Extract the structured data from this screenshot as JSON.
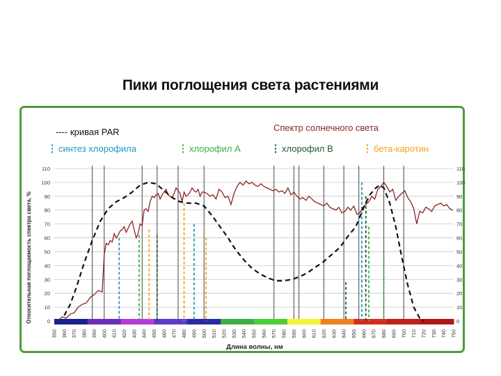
{
  "page": {
    "title": "Пики поглощения света растениями"
  },
  "legend": {
    "par_label": "---- кривая PAR",
    "sun_label": "Спектр солнечного света",
    "chl_synth_label": "синтез хлорофила",
    "chl_a_label": "хлорофил А",
    "chl_b_label": "хлорофил В",
    "beta_label": "бета-каротин"
  },
  "colors": {
    "sun": "#8b2323",
    "par": "#111111",
    "chl_synth": "#1a9bbf",
    "chl_a": "#3cb043",
    "chl_b": "#1e5c2e",
    "beta": "#f2a31a",
    "frame": "#4f9a3e"
  },
  "chart_data": {
    "type": "line",
    "xlabel": "Длина волны, нм",
    "ylabel": "Относительная поглощаемость спектра света, %",
    "xlim": [
      350,
      750
    ],
    "ylim": [
      0,
      110
    ],
    "x_ticks": [
      350,
      360,
      370,
      380,
      390,
      400,
      410,
      420,
      430,
      440,
      450,
      460,
      470,
      480,
      490,
      500,
      510,
      520,
      530,
      540,
      550,
      560,
      570,
      580,
      590,
      600,
      610,
      620,
      630,
      640,
      650,
      660,
      670,
      680,
      690,
      700,
      710,
      720,
      730,
      740,
      750
    ],
    "y_ticks": [
      0,
      10,
      20,
      30,
      40,
      50,
      60,
      70,
      80,
      90,
      100,
      110
    ],
    "grid": true,
    "vertical_gridlines": [
      388,
      400,
      438,
      453,
      474,
      500,
      570,
      590,
      595,
      620,
      640,
      655,
      680,
      700
    ],
    "series": [
      {
        "name": "Спектр солнечного света",
        "style": "solid",
        "x": [
          355,
          358,
          362,
          366,
          370,
          374,
          378,
          382,
          386,
          390,
          394,
          398,
          400,
          402,
          404,
          406,
          408,
          410,
          412,
          414,
          416,
          418,
          420,
          422,
          424,
          426,
          428,
          430,
          432,
          434,
          436,
          438,
          440,
          442,
          444,
          446,
          448,
          450,
          452,
          454,
          456,
          458,
          460,
          462,
          464,
          466,
          468,
          470,
          472,
          474,
          476,
          478,
          480,
          482,
          484,
          486,
          488,
          490,
          492,
          494,
          496,
          498,
          500,
          503,
          506,
          509,
          512,
          515,
          518,
          521,
          524,
          527,
          530,
          533,
          536,
          539,
          542,
          545,
          548,
          551,
          554,
          557,
          560,
          563,
          566,
          569,
          572,
          575,
          578,
          581,
          584,
          587,
          590,
          593,
          596,
          599,
          602,
          605,
          608,
          611,
          614,
          617,
          620,
          623,
          626,
          629,
          632,
          635,
          638,
          641,
          644,
          647,
          650,
          653,
          656,
          659,
          662,
          665,
          668,
          671,
          674,
          677,
          680,
          683,
          686,
          689,
          692,
          695,
          698,
          701,
          704,
          707,
          710,
          713,
          716,
          719,
          722,
          725,
          728,
          731,
          734,
          737,
          740,
          743,
          746,
          749
        ],
        "values": [
          1,
          3,
          2,
          5,
          6,
          10,
          12,
          13,
          17,
          19,
          22,
          21,
          48,
          56,
          55,
          58,
          57,
          63,
          60,
          62,
          65,
          66,
          68,
          64,
          67,
          70,
          72,
          66,
          60,
          63,
          70,
          69,
          80,
          81,
          79,
          86,
          90,
          89,
          91,
          92,
          88,
          91,
          93,
          95,
          91,
          90,
          89,
          92,
          96,
          94,
          92,
          86,
          93,
          90,
          91,
          93,
          96,
          94,
          93,
          95,
          90,
          93,
          93,
          92,
          90,
          91,
          88,
          95,
          93,
          89,
          90,
          84,
          92,
          97,
          100,
          98,
          101,
          99,
          100,
          98,
          97,
          99,
          97,
          96,
          95,
          94,
          95,
          93,
          94,
          92,
          96,
          91,
          93,
          90,
          88,
          89,
          87,
          90,
          88,
          86,
          85,
          84,
          83,
          85,
          82,
          81,
          80,
          82,
          78,
          79,
          82,
          80,
          83,
          77,
          78,
          82,
          84,
          86,
          90,
          88,
          95,
          97,
          100,
          97,
          93,
          95,
          87,
          90,
          92,
          94,
          89,
          86,
          81,
          70,
          79,
          78,
          82,
          81,
          79,
          83,
          84,
          85,
          83,
          84,
          81,
          80
        ]
      },
      {
        "name": "---- кривая PAR",
        "style": "dashed",
        "x": [
          360,
          366,
          372,
          380,
          388,
          396,
          404,
          412,
          420,
          428,
          436,
          444,
          452,
          460,
          468,
          476,
          484,
          492,
          500,
          508,
          516,
          524,
          532,
          540,
          548,
          556,
          564,
          572,
          580,
          588,
          596,
          604,
          612,
          620,
          628,
          636,
          644,
          652,
          660,
          666,
          672,
          676,
          680,
          686,
          692,
          698,
          704,
          710,
          716,
          720
        ],
        "values": [
          4,
          12,
          24,
          42,
          58,
          72,
          81,
          86,
          89,
          93,
          98,
          100,
          99,
          94,
          89,
          86,
          85,
          85,
          83,
          76,
          68,
          60,
          51,
          44,
          38,
          34,
          31,
          29,
          29,
          30,
          32,
          35,
          39,
          43,
          48,
          53,
          61,
          68,
          82,
          91,
          96,
          98,
          96,
          85,
          68,
          46,
          26,
          10,
          2,
          0
        ]
      }
    ],
    "markers": [
      {
        "name": "синтез хлорофила",
        "x": [
          415,
          490,
          658
        ]
      },
      {
        "name": "хлорофил А",
        "x": [
          435,
          665,
          680
        ]
      },
      {
        "name": "хлорофил В",
        "x": [
          453,
          642,
          662
        ]
      },
      {
        "name": "бета-каротин",
        "x": [
          445,
          480,
          502
        ]
      }
    ],
    "spectrum_bar": [
      "#1b1f8a",
      "#6b2fb8",
      "#b53cd6",
      "#5a3cc8",
      "#2a2aa0",
      "#3cb043",
      "#4ccd3a",
      "#f4f23a",
      "#f07f20",
      "#d62a1a",
      "#c0201a",
      "#b01818"
    ]
  }
}
